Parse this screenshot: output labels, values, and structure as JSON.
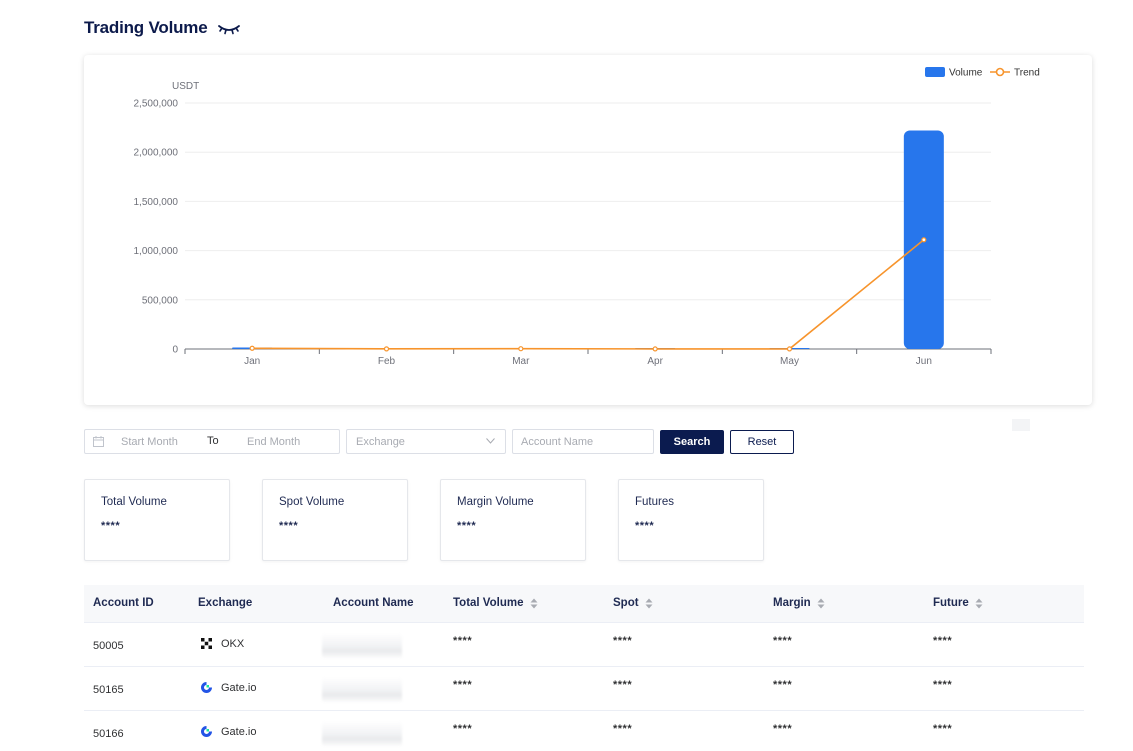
{
  "header": {
    "title": "Trading Volume",
    "visibility_icon": "eye-closed-icon"
  },
  "chart_data": {
    "type": "bar",
    "ylabel": "USDT",
    "categories": [
      "Jan",
      "Feb",
      "Mar",
      "Apr",
      "May",
      "Jun"
    ],
    "yticks": [
      "0",
      "500,000",
      "1,000,000",
      "1,500,000",
      "2,000,000",
      "2,500,000"
    ],
    "ylim": [
      0,
      2500000
    ],
    "series": [
      {
        "name": "Volume",
        "type": "bar",
        "color": "#2776ec",
        "values": [
          15000,
          3000,
          6000,
          2000,
          2000,
          2220000
        ]
      },
      {
        "name": "Trend",
        "type": "line",
        "color": "#f7942c",
        "values": [
          7500,
          1500,
          3000,
          1000,
          1000,
          1110000
        ]
      }
    ],
    "legend_position": "top-right",
    "grid": true
  },
  "filters": {
    "start_placeholder": "Start Month",
    "separator": "To",
    "end_placeholder": "End Month",
    "exchange_placeholder": "Exchange",
    "account_placeholder": "Account Name",
    "search_label": "Search",
    "reset_label": "Reset"
  },
  "stats": [
    {
      "label": "Total Volume",
      "value": "****"
    },
    {
      "label": "Spot Volume",
      "value": "****"
    },
    {
      "label": "Margin Volume",
      "value": "****"
    },
    {
      "label": "Futures",
      "value": "****"
    }
  ],
  "table": {
    "headers": [
      "Account ID",
      "Exchange",
      "Account Name",
      "Total Volume",
      "Spot",
      "Margin",
      "Future"
    ],
    "rows": [
      {
        "account_id": "50005",
        "exchange": "OKX",
        "exchange_icon": "okx-logo-icon",
        "total": "****",
        "spot": "****",
        "margin": "****",
        "future": "****"
      },
      {
        "account_id": "50165",
        "exchange": "Gate.io",
        "exchange_icon": "gate-logo-icon",
        "total": "****",
        "spot": "****",
        "margin": "****",
        "future": "****"
      },
      {
        "account_id": "50166",
        "exchange": "Gate.io",
        "exchange_icon": "gate-logo-icon",
        "total": "****",
        "spot": "****",
        "margin": "****",
        "future": "****"
      }
    ]
  },
  "colors": {
    "primary": "#0b1b4f",
    "bar": "#2776ec",
    "trend": "#f7942c"
  }
}
